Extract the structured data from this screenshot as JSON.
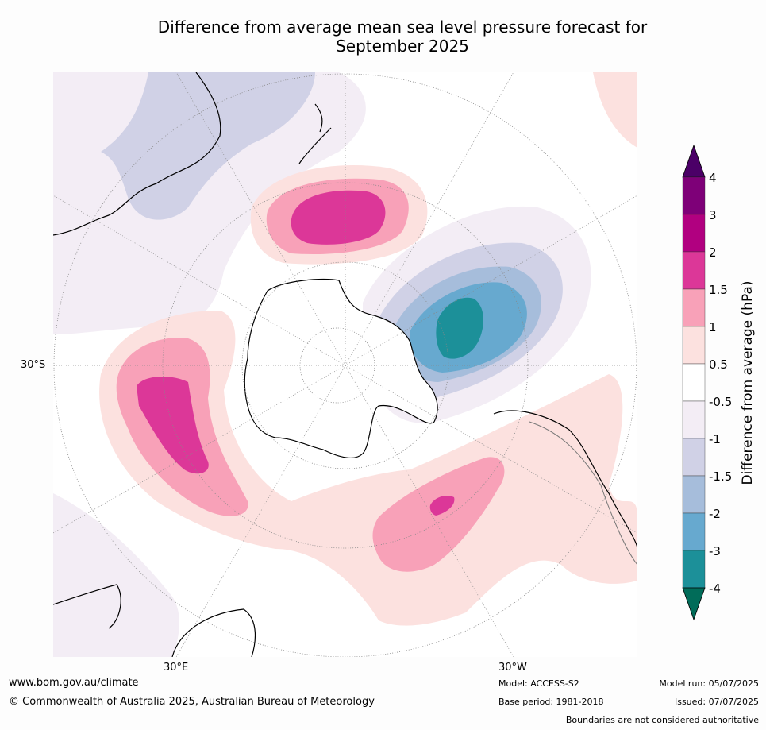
{
  "title_line1": "Difference from average mean sea level pressure forecast for",
  "title_line2": "September 2025",
  "map_labels": {
    "lat_30s": "30°S",
    "lon_30e": "30°E",
    "lon_30w": "30°W"
  },
  "colorbar": {
    "label": "Difference from average (hPa)",
    "ticks": [
      "4",
      "3",
      "2",
      "1.5",
      "1",
      "0.5",
      "-0.5",
      "-1",
      "-1.5",
      "-2",
      "-3",
      "-4"
    ],
    "colors": {
      "gt4": "#4b0067",
      "3_4": "#7e0078",
      "2_3": "#b10080",
      "1.5_2": "#dc3798",
      "1_1.5": "#f8a1b8",
      "0.5_1": "#fce1df",
      "neutral": "#ffffff",
      "m1_m0.5": "#f3edf5",
      "m1.5_m1": "#d0d1e6",
      "m2_m1.5": "#a6bddb",
      "m3_m2": "#67a9cf",
      "m4_m3": "#1c9099",
      "lt_m4": "#016c59"
    }
  },
  "footer": {
    "url": "www.bom.gov.au/climate",
    "copyright": "© Commonwealth of Australia 2025, Australian Bureau of Meteorology",
    "model": "Model: ACCESS-S2",
    "base_period": "Base period: 1981-2018",
    "model_run": "Model run: 05/07/2025",
    "issued": "Issued: 07/07/2025",
    "disclaimer": "Boundaries are not considered authoritative"
  }
}
